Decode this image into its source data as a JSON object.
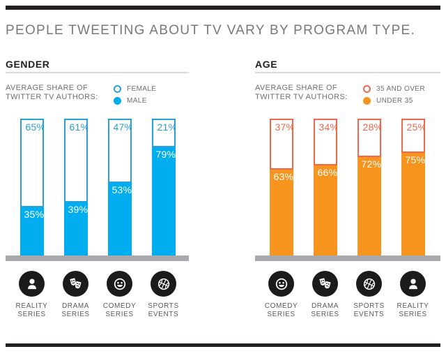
{
  "header": {
    "title": "PEOPLE TWEETING ABOUT TV VARY BY PROGRAM TYPE."
  },
  "colors": {
    "near_black": "#231F20",
    "title_gray": "#77787B",
    "legend_gray": "#6D6E71",
    "rule_gray": "#DBDCDD",
    "baseline_gray": "#A7A9AC",
    "category_label_gray": "#58595B",
    "blue_fill": "#00AEEF",
    "blue_outline": "#2B9FD9",
    "orange_fill": "#F7941E",
    "orange_outline": "#F2664B"
  },
  "chart_data": [
    {
      "type": "bar",
      "variant": "stacked-100-percent",
      "title": "GENDER",
      "legend_title_lines": [
        "AVERAGE SHARE OF",
        "TWITTER TV AUTHORS:"
      ],
      "legend_position": "top-right",
      "ylim": [
        0,
        100
      ],
      "grid": false,
      "categories": [
        {
          "label_lines": [
            "REALITY",
            "SERIES"
          ],
          "icon": "person-icon"
        },
        {
          "label_lines": [
            "DRAMA",
            "SERIES"
          ],
          "icon": "masks-icon"
        },
        {
          "label_lines": [
            "COMEDY",
            "SERIES"
          ],
          "icon": "smiley-icon"
        },
        {
          "label_lines": [
            "SPORTS",
            "EVENTS"
          ],
          "icon": "basketball-icon"
        }
      ],
      "series": [
        {
          "name": "FEMALE",
          "style": "outline",
          "color": "#2B9FD9",
          "values": [
            65,
            61,
            47,
            21
          ]
        },
        {
          "name": "MALE",
          "style": "fill",
          "color": "#00AEEF",
          "values": [
            35,
            39,
            53,
            79
          ]
        }
      ],
      "value_suffix": "%"
    },
    {
      "type": "bar",
      "variant": "stacked-100-percent",
      "title": "AGE",
      "legend_title_lines": [
        "AVERAGE SHARE OF",
        "TWITTER TV AUTHORS:"
      ],
      "legend_position": "top-right",
      "ylim": [
        0,
        100
      ],
      "grid": false,
      "categories": [
        {
          "label_lines": [
            "COMEDY",
            "SERIES"
          ],
          "icon": "smiley-icon"
        },
        {
          "label_lines": [
            "DRAMA",
            "SERIES"
          ],
          "icon": "masks-icon"
        },
        {
          "label_lines": [
            "SPORTS",
            "EVENTS"
          ],
          "icon": "basketball-icon"
        },
        {
          "label_lines": [
            "REALITY",
            "SERIES"
          ],
          "icon": "person-icon"
        }
      ],
      "series": [
        {
          "name": "35 AND OVER",
          "style": "outline",
          "color": "#F2664B",
          "values": [
            37,
            34,
            28,
            25
          ]
        },
        {
          "name": "UNDER 35",
          "style": "fill",
          "color": "#F7941E",
          "values": [
            63,
            66,
            72,
            75
          ]
        }
      ],
      "value_suffix": "%"
    }
  ]
}
